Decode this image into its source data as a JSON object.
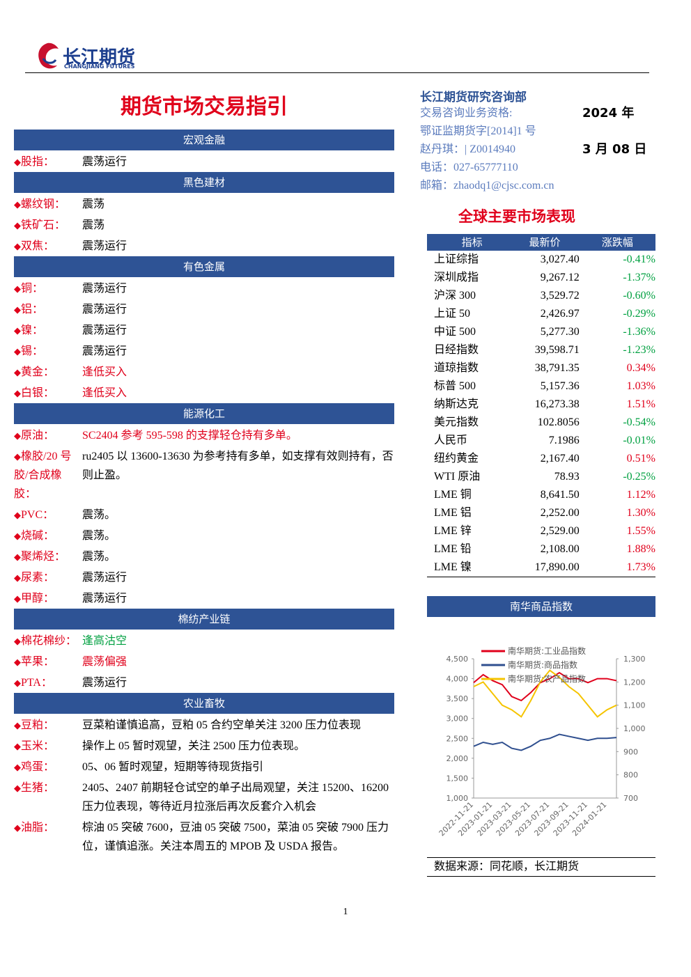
{
  "header": {
    "logo": "长江期货",
    "logo_sub": "CHANGJIANG FUTURES"
  },
  "title": "期货市场交易指引",
  "sections": [
    {
      "name": "宏观金融",
      "items": [
        {
          "label": "股指：",
          "value": "震荡运行"
        }
      ]
    },
    {
      "name": "黑色建材",
      "items": [
        {
          "label": "螺纹钢：",
          "value": "震荡"
        },
        {
          "label": "铁矿石：",
          "value": "震荡"
        },
        {
          "label": "双焦：",
          "value": "震荡运行"
        }
      ]
    },
    {
      "name": "有色金属",
      "items": [
        {
          "label": "铜：",
          "value": "震荡运行"
        },
        {
          "label": "铝：",
          "value": "震荡运行"
        },
        {
          "label": "镍：",
          "value": "震荡运行"
        },
        {
          "label": "锡：",
          "value": "震荡运行"
        },
        {
          "label": "黄金：",
          "value": "逢低买入",
          "color": "#e0001b"
        },
        {
          "label": "白银：",
          "value": "逢低买入",
          "color": "#e0001b"
        }
      ]
    },
    {
      "name": "能源化工",
      "items": [
        {
          "label": "原油：",
          "value": "SC2404 参考 595-598 的支撑轻仓持有多单。",
          "color": "#e0001b"
        },
        {
          "label": "橡胶/20 号胶/合成橡胶：",
          "value": "ru2405 以 13600-13630 为参考持有多单，如支撑有效则持有，否则止盈。"
        },
        {
          "label": "PVC：",
          "value": "震荡。"
        },
        {
          "label": "烧碱：",
          "value": "震荡。"
        },
        {
          "label": "聚烯烃：",
          "value": "震荡。"
        },
        {
          "label": "尿素：",
          "value": "震荡运行"
        },
        {
          "label": "甲醇：",
          "value": "震荡运行"
        }
      ]
    },
    {
      "name": "棉纺产业链",
      "items": [
        {
          "label": "棉花棉纱：",
          "value": "逢高沽空",
          "color": "#00a040"
        },
        {
          "label": "苹果：",
          "value": "震荡偏强",
          "color": "#e0001b"
        },
        {
          "label": "PTA：",
          "value": "震荡运行"
        }
      ]
    },
    {
      "name": "农业畜牧",
      "items": [
        {
          "label": "豆粕：",
          "value": "豆菜粕谨慎追高，豆粕 05 合约空单关注 3200 压力位表现"
        },
        {
          "label": "玉米：",
          "value": "操作上 05 暂时观望，关注 2500 压力位表现。"
        },
        {
          "label": "鸡蛋：",
          "value": "05、06 暂时观望，短期等待现货指引"
        },
        {
          "label": "生猪：",
          "value": "2405、2407 前期轻仓试空的单子出局观望，关注 15200、16200 压力位表现，等待近月拉涨后再次反套介入机会"
        },
        {
          "label": "油脂：",
          "value": "棕油 05 突破 7600，豆油 05 突破 7500，菜油 05 突破 7900 压力位，谨慎追涨。关注本周五的 MPOB 及 USDA 报告。"
        }
      ]
    }
  ],
  "info": {
    "dept": "长江期货研究咨询部",
    "lines": [
      "交易咨询业务资格:",
      "鄂证监期货字[2014]1 号",
      "赵丹琪：| Z0014940",
      "电话：027-65777110",
      "邮箱：zhaodq1@cjsc.com.cn"
    ],
    "year": "2024 年",
    "date": "3 月 08 日"
  },
  "market": {
    "title": "全球主要市场表现",
    "columns": [
      "指标",
      "最新价",
      "涨跌幅"
    ],
    "rows": [
      [
        "上证综指",
        "3,027.40",
        "-0.41%"
      ],
      [
        "深圳成指",
        "9,267.12",
        "-1.37%"
      ],
      [
        "沪深 300",
        "3,529.72",
        "-0.60%"
      ],
      [
        "上证 50",
        "2,426.97",
        "-0.29%"
      ],
      [
        "中证 500",
        "5,277.30",
        "-1.36%"
      ],
      [
        "日经指数",
        "39,598.71",
        "-1.23%"
      ],
      [
        "道琼指数",
        "38,791.35",
        "0.34%"
      ],
      [
        "标普 500",
        "5,157.36",
        "1.03%"
      ],
      [
        "纳斯达克",
        "16,273.38",
        "1.51%"
      ],
      [
        "美元指数",
        "102.8056",
        "-0.54%"
      ],
      [
        "人民币",
        "7.1986",
        "-0.01%"
      ],
      [
        "纽约黄金",
        "2,167.40",
        "0.51%"
      ],
      [
        "WTI 原油",
        "78.93",
        "-0.25%"
      ],
      [
        "LME 铜",
        "8,641.50",
        "1.12%"
      ],
      [
        "LME 铝",
        "2,252.00",
        "1.30%"
      ],
      [
        "LME 锌",
        "2,529.00",
        "1.55%"
      ],
      [
        "LME 铅",
        "2,108.00",
        "1.88%"
      ],
      [
        "LME 镍",
        "17,890.00",
        "1.73%"
      ]
    ]
  },
  "chart_data": {
    "type": "line",
    "title": "南华商品指数",
    "categories": [
      "2022-11-21",
      null,
      "2023-01-21",
      null,
      "2023-03-21",
      null,
      "2023-05-21",
      null,
      "2023-07-21",
      null,
      "2023-09-21",
      null,
      "2023-11-21",
      null,
      "2024-01-21",
      null
    ],
    "series": [
      {
        "name": "南华期货:工业品指数",
        "color": "#e0001b",
        "values": [
          3900,
          4100,
          3950,
          3850,
          3550,
          3450,
          3650,
          3900,
          4000,
          4150,
          4000,
          4000,
          3900,
          4000,
          4000,
          3950
        ]
      },
      {
        "name": "南华期货:商品指数",
        "color": "#2f4f8f",
        "values": [
          2300,
          2400,
          2350,
          2400,
          2250,
          2200,
          2300,
          2450,
          2500,
          2600,
          2550,
          2500,
          2450,
          2500,
          2500,
          2520
        ]
      },
      {
        "name": "南华期货:农产品指数",
        "color": "#f5c400",
        "axis": "y2",
        "values": [
          1180,
          1200,
          1150,
          1100,
          1080,
          1050,
          1120,
          1200,
          1250,
          1220,
          1180,
          1150,
          1100,
          1050,
          1080,
          1100
        ]
      }
    ],
    "ylim": [
      1000,
      4500
    ],
    "yticks": [
      {
        "value": 1000,
        "label": "1,000"
      },
      {
        "value": 1500,
        "label": "1,500"
      },
      {
        "value": 2000,
        "label": "2,000"
      },
      {
        "value": 2500,
        "label": "2,500"
      },
      {
        "value": 3000,
        "label": "3,000"
      },
      {
        "value": 3500,
        "label": "3,500"
      },
      {
        "value": 4000,
        "label": "4,000"
      },
      {
        "value": 4500,
        "label": "4,500"
      }
    ],
    "y2lim": [
      700,
      1300
    ],
    "y2ticks": [
      700,
      800,
      900,
      {
        "value": 1000,
        "label": "1,000"
      },
      {
        "value": 1100,
        "label": "1,100"
      },
      {
        "value": 1200,
        "label": "1,200"
      },
      {
        "value": 1300,
        "label": "1,300"
      }
    ],
    "source": "数据来源：同花顺，长江期货"
  },
  "page_number": "1"
}
